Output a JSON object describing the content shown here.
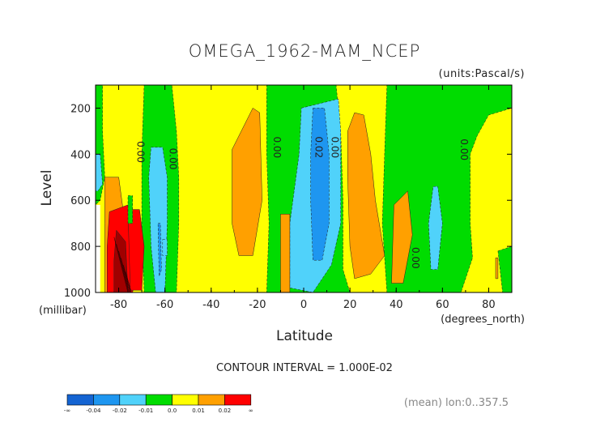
{
  "chart_data": {
    "type": "heatmap",
    "title": "OMEGA_1962-MAM_NCEP",
    "units_label": "(units:Pascal/s)",
    "xlabel": "Latitude",
    "x_units_label": "(degrees_north)",
    "ylabel": "Level",
    "y_units_label": "(millibar)",
    "xlim": [
      -90,
      90
    ],
    "ylim": [
      1000,
      100
    ],
    "x_ticks": [
      "-80",
      "-60",
      "-40",
      "-20",
      "0",
      "20",
      "40",
      "60",
      "80"
    ],
    "x_tick_values": [
      -80,
      -60,
      -40,
      -20,
      0,
      20,
      40,
      60,
      80
    ],
    "y_ticks": [
      "200",
      "400",
      "600",
      "800",
      "1000"
    ],
    "y_tick_values": [
      200,
      400,
      600,
      800,
      1000
    ],
    "contour_interval_text": "CONTOUR INTERVAL = 1.000E-02",
    "footnote": "(mean) lon:0..357.5",
    "contour_labels": [
      {
        "text": "0.00",
        "x": -72,
        "y": 390
      },
      {
        "text": "0.00",
        "x": -58,
        "y": 420
      },
      {
        "text": "0.00",
        "x": -13,
        "y": 370
      },
      {
        "text": "0.02",
        "x": 5,
        "y": 370
      },
      {
        "text": "0.00",
        "x": 12,
        "y": 370
      },
      {
        "text": "0.00",
        "x": 47,
        "y": 850
      },
      {
        "text": "0.00",
        "x": 68,
        "y": 380
      }
    ],
    "legend": {
      "colors": [
        "#1464d2",
        "#1e96f0",
        "#50d2fa",
        "#00dc00",
        "#ffff00",
        "#ffa000",
        "#ff0000"
      ],
      "labels": [
        "-∞",
        "-0.04",
        "-0.02",
        "-0.01",
        "0.0",
        "0.01",
        "0.02",
        "∞"
      ]
    },
    "fill_classes": {
      "lt_-0.02": "#1e96f0",
      "-0.02_-0.01": "#50d2fa",
      "-0.01_0": "#00dc00",
      "0_0.01": "#ffff00",
      "0.01_0.02": "#ffa000",
      "0.02_0.04": "#ff0000",
      "gt_0.04": "#a00000"
    },
    "regions": [
      {
        "level": "-0.01_0",
        "label": "descent SH 60-50S",
        "pts": [
          [
            -69,
            100
          ],
          [
            -57,
            100
          ],
          [
            -55,
            300
          ],
          [
            -54,
            500
          ],
          [
            -54,
            700
          ],
          [
            -55,
            1000
          ],
          [
            -69,
            1000
          ],
          [
            -70,
            700
          ],
          [
            -70,
            400
          ]
        ]
      },
      {
        "level": "-0.02_-0.01",
        "label": "SH 62S core",
        "pts": [
          [
            -66,
            370
          ],
          [
            -61,
            370
          ],
          [
            -59,
            500
          ],
          [
            -59,
            700
          ],
          [
            -60,
            1000
          ],
          [
            -64,
            1000
          ],
          [
            -66,
            800
          ],
          [
            -67,
            500
          ]
        ]
      },
      {
        "level": "lt_-0.02",
        "label": "SH 62S inner",
        "pts": [
          [
            -63,
            700
          ],
          [
            -62,
            700
          ],
          [
            -61.5,
            900
          ],
          [
            -62.5,
            930
          ]
        ]
      },
      {
        "level": "-0.01_0",
        "label": "SH edge 90S",
        "pts": [
          [
            -90,
            100
          ],
          [
            -87,
            100
          ],
          [
            -87,
            300
          ],
          [
            -86,
            500
          ],
          [
            -88,
            600
          ],
          [
            -90,
            620
          ]
        ]
      },
      {
        "level": "-0.02_-0.01",
        "label": "SH edge 88S",
        "pts": [
          [
            -90,
            400
          ],
          [
            -88,
            400
          ],
          [
            -87,
            530
          ],
          [
            -89,
            560
          ],
          [
            -90,
            560
          ]
        ]
      },
      {
        "level": "-0.01_0",
        "label": "equator descent",
        "pts": [
          [
            -16,
            100
          ],
          [
            14,
            100
          ],
          [
            16,
            300
          ],
          [
            17,
            600
          ],
          [
            17,
            900
          ],
          [
            20,
            1000
          ],
          [
            -16,
            1000
          ],
          [
            -15,
            700
          ],
          [
            -16,
            400
          ]
        ]
      },
      {
        "level": "-0.02_-0.01",
        "label": "equator band",
        "pts": [
          [
            -1,
            200
          ],
          [
            15,
            160
          ],
          [
            16,
            300
          ],
          [
            16,
            700
          ],
          [
            12,
            880
          ],
          [
            4,
            1000
          ],
          [
            -6,
            980
          ],
          [
            -6,
            700
          ],
          [
            -2,
            400
          ]
        ]
      },
      {
        "level": "lt_-0.02",
        "label": "equator core",
        "pts": [
          [
            4,
            200
          ],
          [
            9,
            200
          ],
          [
            11,
            400
          ],
          [
            11,
            700
          ],
          [
            8,
            860
          ],
          [
            4,
            860
          ],
          [
            3,
            600
          ],
          [
            3,
            400
          ]
        ]
      },
      {
        "level": "-0.01_0",
        "label": "NH 30-70N",
        "pts": [
          [
            36,
            100
          ],
          [
            90,
            100
          ],
          [
            90,
            200
          ],
          [
            80,
            230
          ],
          [
            75,
            320
          ],
          [
            72,
            400
          ],
          [
            72,
            700
          ],
          [
            73,
            850
          ],
          [
            68,
            1000
          ],
          [
            36,
            1000
          ],
          [
            34,
            700
          ],
          [
            35,
            400
          ]
        ]
      },
      {
        "level": "-0.02_-0.01",
        "label": "NH 57N",
        "pts": [
          [
            56,
            540
          ],
          [
            58,
            540
          ],
          [
            60,
            700
          ],
          [
            58,
            900
          ],
          [
            55,
            900
          ],
          [
            54,
            700
          ]
        ]
      },
      {
        "level": "-0.01_0",
        "label": "NH polar",
        "pts": [
          [
            84,
            820
          ],
          [
            90,
            800
          ],
          [
            90,
            1000
          ],
          [
            86,
            1000
          ]
        ]
      },
      {
        "level": "0.01_0.02",
        "label": "SH 80S yellow",
        "pts": [
          [
            -86,
            500
          ],
          [
            -80,
            500
          ],
          [
            -78,
            650
          ],
          [
            -77,
            900
          ],
          [
            -80,
            1000
          ],
          [
            -86,
            1000
          ],
          [
            -86,
            700
          ]
        ]
      },
      {
        "level": "0.02_0.04",
        "label": "SH 80S red",
        "pts": [
          [
            -84,
            650
          ],
          [
            -76,
            620
          ],
          [
            -74,
            750
          ],
          [
            -72,
            900
          ],
          [
            -74,
            1000
          ],
          [
            -85,
            1000
          ],
          [
            -85,
            800
          ]
        ]
      },
      {
        "level": "gt_0.04",
        "label": "SH 80S dark",
        "pts": [
          [
            -81,
            730
          ],
          [
            -77,
            780
          ],
          [
            -76,
            1000
          ],
          [
            -82,
            1000
          ],
          [
            -82,
            860
          ]
        ]
      },
      {
        "level": "0.02_0.04",
        "label": "SH 70S red",
        "pts": [
          [
            -76,
            640
          ],
          [
            -71,
            640
          ],
          [
            -69,
            800
          ],
          [
            -70,
            990
          ],
          [
            -75,
            990
          ]
        ]
      },
      {
        "level": "-0.01_0",
        "label": "SH 75S green",
        "pts": [
          [
            -76,
            580
          ],
          [
            -74,
            580
          ],
          [
            -74,
            700
          ],
          [
            -76,
            700
          ]
        ]
      },
      {
        "level": "0.01_0.02",
        "label": "SH 30S orange",
        "pts": [
          [
            -22,
            200
          ],
          [
            -19,
            220
          ],
          [
            -18,
            600
          ],
          [
            -22,
            840
          ],
          [
            -28,
            840
          ],
          [
            -31,
            700
          ],
          [
            -31,
            380
          ]
        ]
      },
      {
        "level": "0.01_0.02",
        "label": "SH 10S orange",
        "pts": [
          [
            -10,
            660
          ],
          [
            -6,
            660
          ],
          [
            -6,
            1000
          ],
          [
            -10,
            1000
          ]
        ]
      },
      {
        "level": "0.01_0.02",
        "label": "NH 25N orange",
        "pts": [
          [
            22,
            220
          ],
          [
            26,
            230
          ],
          [
            29,
            400
          ],
          [
            31,
            600
          ],
          [
            35,
            840
          ],
          [
            29,
            920
          ],
          [
            22,
            940
          ],
          [
            20,
            800
          ],
          [
            19,
            500
          ],
          [
            19,
            300
          ]
        ]
      },
      {
        "level": "0.01_0.02",
        "label": "NH 45N orange",
        "pts": [
          [
            39,
            620
          ],
          [
            45,
            560
          ],
          [
            47,
            750
          ],
          [
            43,
            960
          ],
          [
            38,
            960
          ]
        ]
      },
      {
        "level": "0.01_0.02",
        "label": "NH 85N orange",
        "pts": [
          [
            83,
            850
          ],
          [
            84,
            850
          ],
          [
            84,
            940
          ],
          [
            83,
            940
          ]
        ]
      },
      {
        "level": "-0.02_-0.01",
        "label": "SH 60S small",
        "pts": [
          [
            -61,
            770
          ],
          [
            -59,
            770
          ],
          [
            -59,
            840
          ],
          [
            -61,
            840
          ]
        ]
      }
    ],
    "grid": false
  }
}
